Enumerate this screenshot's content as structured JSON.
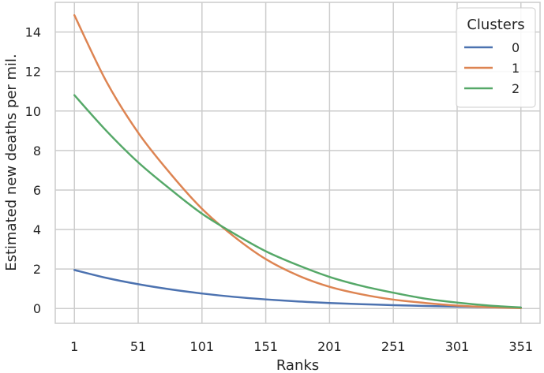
{
  "chart_data": {
    "type": "line",
    "xlabel": "Ranks",
    "ylabel": "Estimated new deaths per mil.",
    "xlim": [
      -14,
      366
    ],
    "ylim": [
      -0.75,
      15.5
    ],
    "x_ticks": [
      1,
      51,
      101,
      151,
      201,
      251,
      301,
      351
    ],
    "y_ticks": [
      0,
      2,
      4,
      6,
      8,
      10,
      12,
      14
    ],
    "grid": true,
    "legend": {
      "title": "Clusters",
      "placement": "top-right"
    },
    "x": [
      1,
      26,
      51,
      76,
      101,
      126,
      151,
      176,
      201,
      226,
      251,
      276,
      301,
      326,
      351
    ],
    "series": [
      {
        "name": "0",
        "color": "#4c72b0",
        "values": [
          1.95,
          1.55,
          1.23,
          0.97,
          0.76,
          0.59,
          0.46,
          0.36,
          0.28,
          0.22,
          0.17,
          0.13,
          0.1,
          0.07,
          0.05
        ]
      },
      {
        "name": "1",
        "color": "#dd8452",
        "values": [
          14.85,
          11.5,
          8.9,
          6.85,
          5.05,
          3.65,
          2.5,
          1.68,
          1.1,
          0.72,
          0.45,
          0.28,
          0.15,
          0.07,
          0.02
        ]
      },
      {
        "name": "2",
        "color": "#55a868",
        "values": [
          10.8,
          9.0,
          7.4,
          6.05,
          4.8,
          3.8,
          2.9,
          2.2,
          1.6,
          1.15,
          0.8,
          0.5,
          0.3,
          0.15,
          0.05
        ]
      }
    ]
  }
}
